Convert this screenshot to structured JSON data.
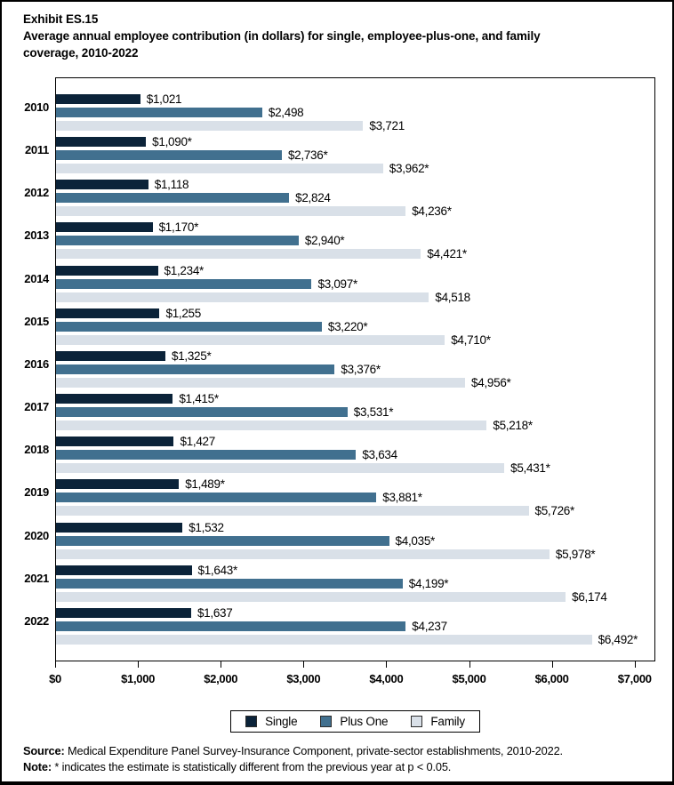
{
  "header": {
    "exhibit_label": "Exhibit ES.15",
    "title_line1": "Average annual employee contribution (in dollars) for single, employee-plus-one, and family",
    "title_line2": "coverage, 2010-2022"
  },
  "chart_data": {
    "type": "bar",
    "orientation": "horizontal",
    "title": "Average annual employee contribution (in dollars) for single, employee-plus-one, and family coverage, 2010-2022",
    "categories": [
      "2010",
      "2011",
      "2012",
      "2013",
      "2014",
      "2015",
      "2016",
      "2017",
      "2018",
      "2019",
      "2020",
      "2021",
      "2022"
    ],
    "series": [
      {
        "name": "Single",
        "color": "#0b2339",
        "values": [
          1021,
          1090,
          1118,
          1170,
          1234,
          1255,
          1325,
          1415,
          1427,
          1489,
          1532,
          1643,
          1637
        ],
        "labels": [
          "$1,021",
          "$1,090*",
          "$1,118",
          "$1,170*",
          "$1,234*",
          "$1,255",
          "$1,325*",
          "$1,415*",
          "$1,427",
          "$1,489*",
          "$1,532",
          "$1,643*",
          "$1,637"
        ]
      },
      {
        "name": "Plus One",
        "color": "#41708f",
        "values": [
          2498,
          2736,
          2824,
          2940,
          3097,
          3220,
          3376,
          3531,
          3634,
          3881,
          4035,
          4199,
          4237
        ],
        "labels": [
          "$2,498",
          "$2,736*",
          "$2,824",
          "$2,940*",
          "$3,097*",
          "$3,220*",
          "$3,376*",
          "$3,531*",
          "$3,634",
          "$3,881*",
          "$4,035*",
          "$4,199*",
          "$4,237"
        ]
      },
      {
        "name": "Family",
        "color": "#d9e0e8",
        "values": [
          3721,
          3962,
          4236,
          4421,
          4518,
          4710,
          4956,
          5218,
          5431,
          5726,
          5978,
          6174,
          6492
        ],
        "labels": [
          "$3,721",
          "$3,962*",
          "$4,236*",
          "$4,421*",
          "$4,518",
          "$4,710*",
          "$4,956*",
          "$5,218*",
          "$5,431*",
          "$5,726*",
          "$5,978*",
          "$6,174",
          "$6,492*"
        ]
      }
    ],
    "xlabel": "",
    "ylabel": "",
    "xlim": [
      0,
      7000
    ],
    "x_ticks": [
      {
        "value": 0,
        "label": "$0"
      },
      {
        "value": 1000,
        "label": "$1,000"
      },
      {
        "value": 2000,
        "label": "$2,000"
      },
      {
        "value": 3000,
        "label": "$3,000"
      },
      {
        "value": 4000,
        "label": "$4,000"
      },
      {
        "value": 5000,
        "label": "$5,000"
      },
      {
        "value": 6000,
        "label": "$6,000"
      },
      {
        "value": 7000,
        "label": "$7,000"
      }
    ],
    "grid": false,
    "legend": [
      "Single",
      "Plus One",
      "Family"
    ],
    "legend_position": "bottom"
  },
  "footer": {
    "source_label": "Source:",
    "source_text": " Medical Expenditure Panel Survey-Insurance Component, private-sector establishments, 2010-2022.",
    "note_label": "Note:",
    "note_text": " * indicates the estimate is statistically different from the previous year at p < 0.05."
  }
}
